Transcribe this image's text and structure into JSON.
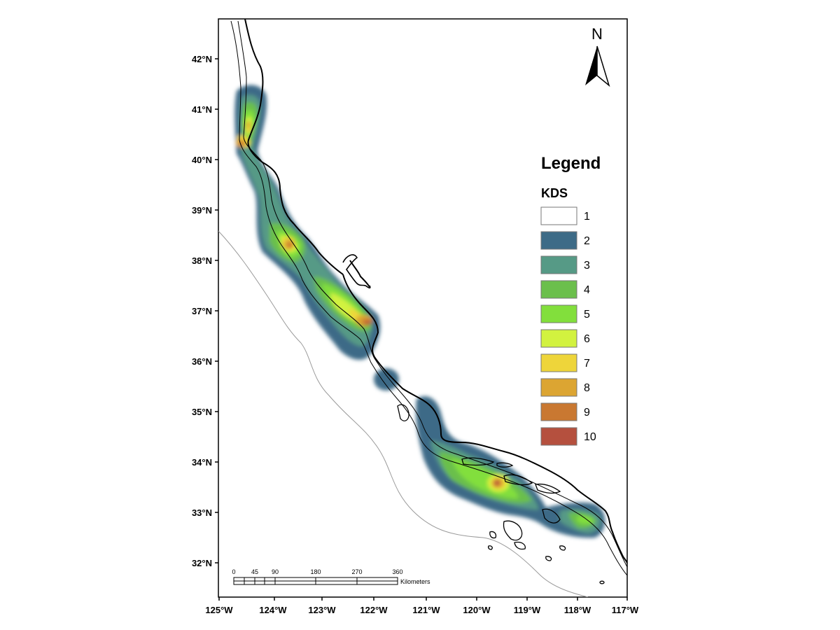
{
  "map": {
    "latitude_labels": [
      "42°N",
      "41°N",
      "40°N",
      "39°N",
      "38°N",
      "37°N",
      "36°N",
      "35°N",
      "34°N",
      "33°N",
      "32°N"
    ],
    "longitude_labels": [
      "125°W",
      "124°W",
      "123°W",
      "122°W",
      "121°W",
      "120°W",
      "119°W",
      "118°W",
      "117°W"
    ],
    "north_arrow": {
      "label": "N",
      "icon": "north-arrow-icon"
    },
    "legend": {
      "title": "Legend",
      "subtitle": "KDS",
      "classes": [
        {
          "label": "1",
          "color": "#ffffff"
        },
        {
          "label": "2",
          "color": "#3d6b87"
        },
        {
          "label": "3",
          "color": "#569a86"
        },
        {
          "label": "4",
          "color": "#6bbf4c"
        },
        {
          "label": "5",
          "color": "#82df3c"
        },
        {
          "label": "6",
          "color": "#d2f23f"
        },
        {
          "label": "7",
          "color": "#eed53a"
        },
        {
          "label": "8",
          "color": "#dca532"
        },
        {
          "label": "9",
          "color": "#c97831"
        },
        {
          "label": "10",
          "color": "#b5503e"
        }
      ]
    },
    "scale_bar": {
      "ticks": [
        "0",
        "45",
        "90",
        "180",
        "270",
        "360"
      ],
      "unit": "Kilometers"
    }
  }
}
